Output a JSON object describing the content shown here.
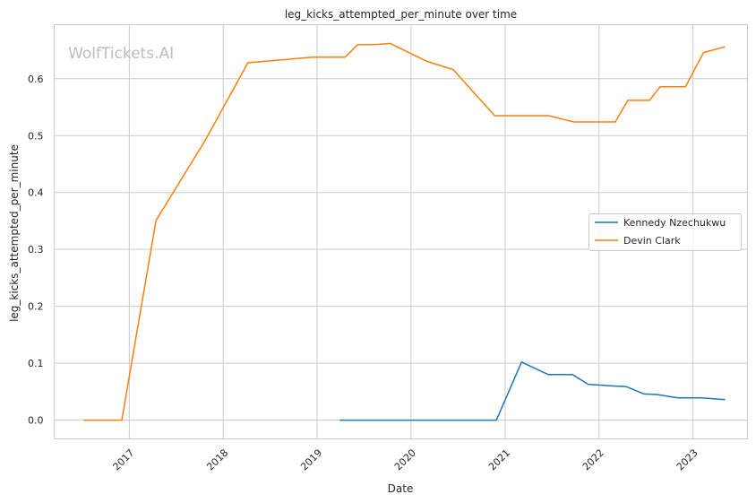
{
  "chart_data": {
    "type": "line",
    "title": "leg_kicks_attempted_per_minute over time",
    "xlabel": "Date",
    "ylabel": "leg_kicks_attempted_per_minute",
    "x_ticks": [
      "2017",
      "2018",
      "2019",
      "2020",
      "2021",
      "2022",
      "2023"
    ],
    "y_ticks": [
      "0.0",
      "0.1",
      "0.2",
      "0.3",
      "0.4",
      "0.5",
      "0.6"
    ],
    "xlim": [
      "2016-03-15",
      "2023-08-01"
    ],
    "ylim": [
      -0.033,
      0.695
    ],
    "grid": true,
    "legend_position": "center-right",
    "watermark": "WolfTickets.AI",
    "series": [
      {
        "name": "Kennedy Nzechukwu",
        "color": "#1f77b4",
        "points": [
          [
            "2019-03-30",
            0.0
          ],
          [
            "2019-09-01",
            0.0
          ],
          [
            "2020-02-01",
            0.0
          ],
          [
            "2020-06-01",
            0.0
          ],
          [
            "2020-11-28",
            0.0
          ],
          [
            "2021-03-06",
            0.102
          ],
          [
            "2021-06-18",
            0.08
          ],
          [
            "2021-09-20",
            0.08
          ],
          [
            "2021-11-20",
            0.063
          ],
          [
            "2022-02-26",
            0.06
          ],
          [
            "2022-04-16",
            0.059
          ],
          [
            "2022-06-25",
            0.046
          ],
          [
            "2022-08-13",
            0.045
          ],
          [
            "2022-11-05",
            0.039
          ],
          [
            "2023-02-04",
            0.039
          ],
          [
            "2023-05-06",
            0.036
          ]
        ]
      },
      {
        "name": "Devin Clark",
        "color": "#ff7f0e",
        "points": [
          [
            "2016-07-08",
            0.0
          ],
          [
            "2016-12-03",
            0.0
          ],
          [
            "2017-04-15",
            0.351
          ],
          [
            "2017-10-21",
            0.49
          ],
          [
            "2018-04-07",
            0.628
          ],
          [
            "2018-12-15",
            0.638
          ],
          [
            "2019-04-20",
            0.638
          ],
          [
            "2019-06-08",
            0.66
          ],
          [
            "2019-08-17",
            0.66
          ],
          [
            "2019-10-12",
            0.662
          ],
          [
            "2020-02-29",
            0.631
          ],
          [
            "2020-06-13",
            0.616
          ],
          [
            "2020-11-21",
            0.535
          ],
          [
            "2021-06-19",
            0.535
          ],
          [
            "2021-09-25",
            0.524
          ],
          [
            "2022-03-05",
            0.524
          ],
          [
            "2022-04-23",
            0.562
          ],
          [
            "2022-07-16",
            0.562
          ],
          [
            "2022-08-27",
            0.586
          ],
          [
            "2022-12-03",
            0.586
          ],
          [
            "2023-02-11",
            0.646
          ],
          [
            "2023-05-06",
            0.656
          ]
        ]
      }
    ]
  }
}
